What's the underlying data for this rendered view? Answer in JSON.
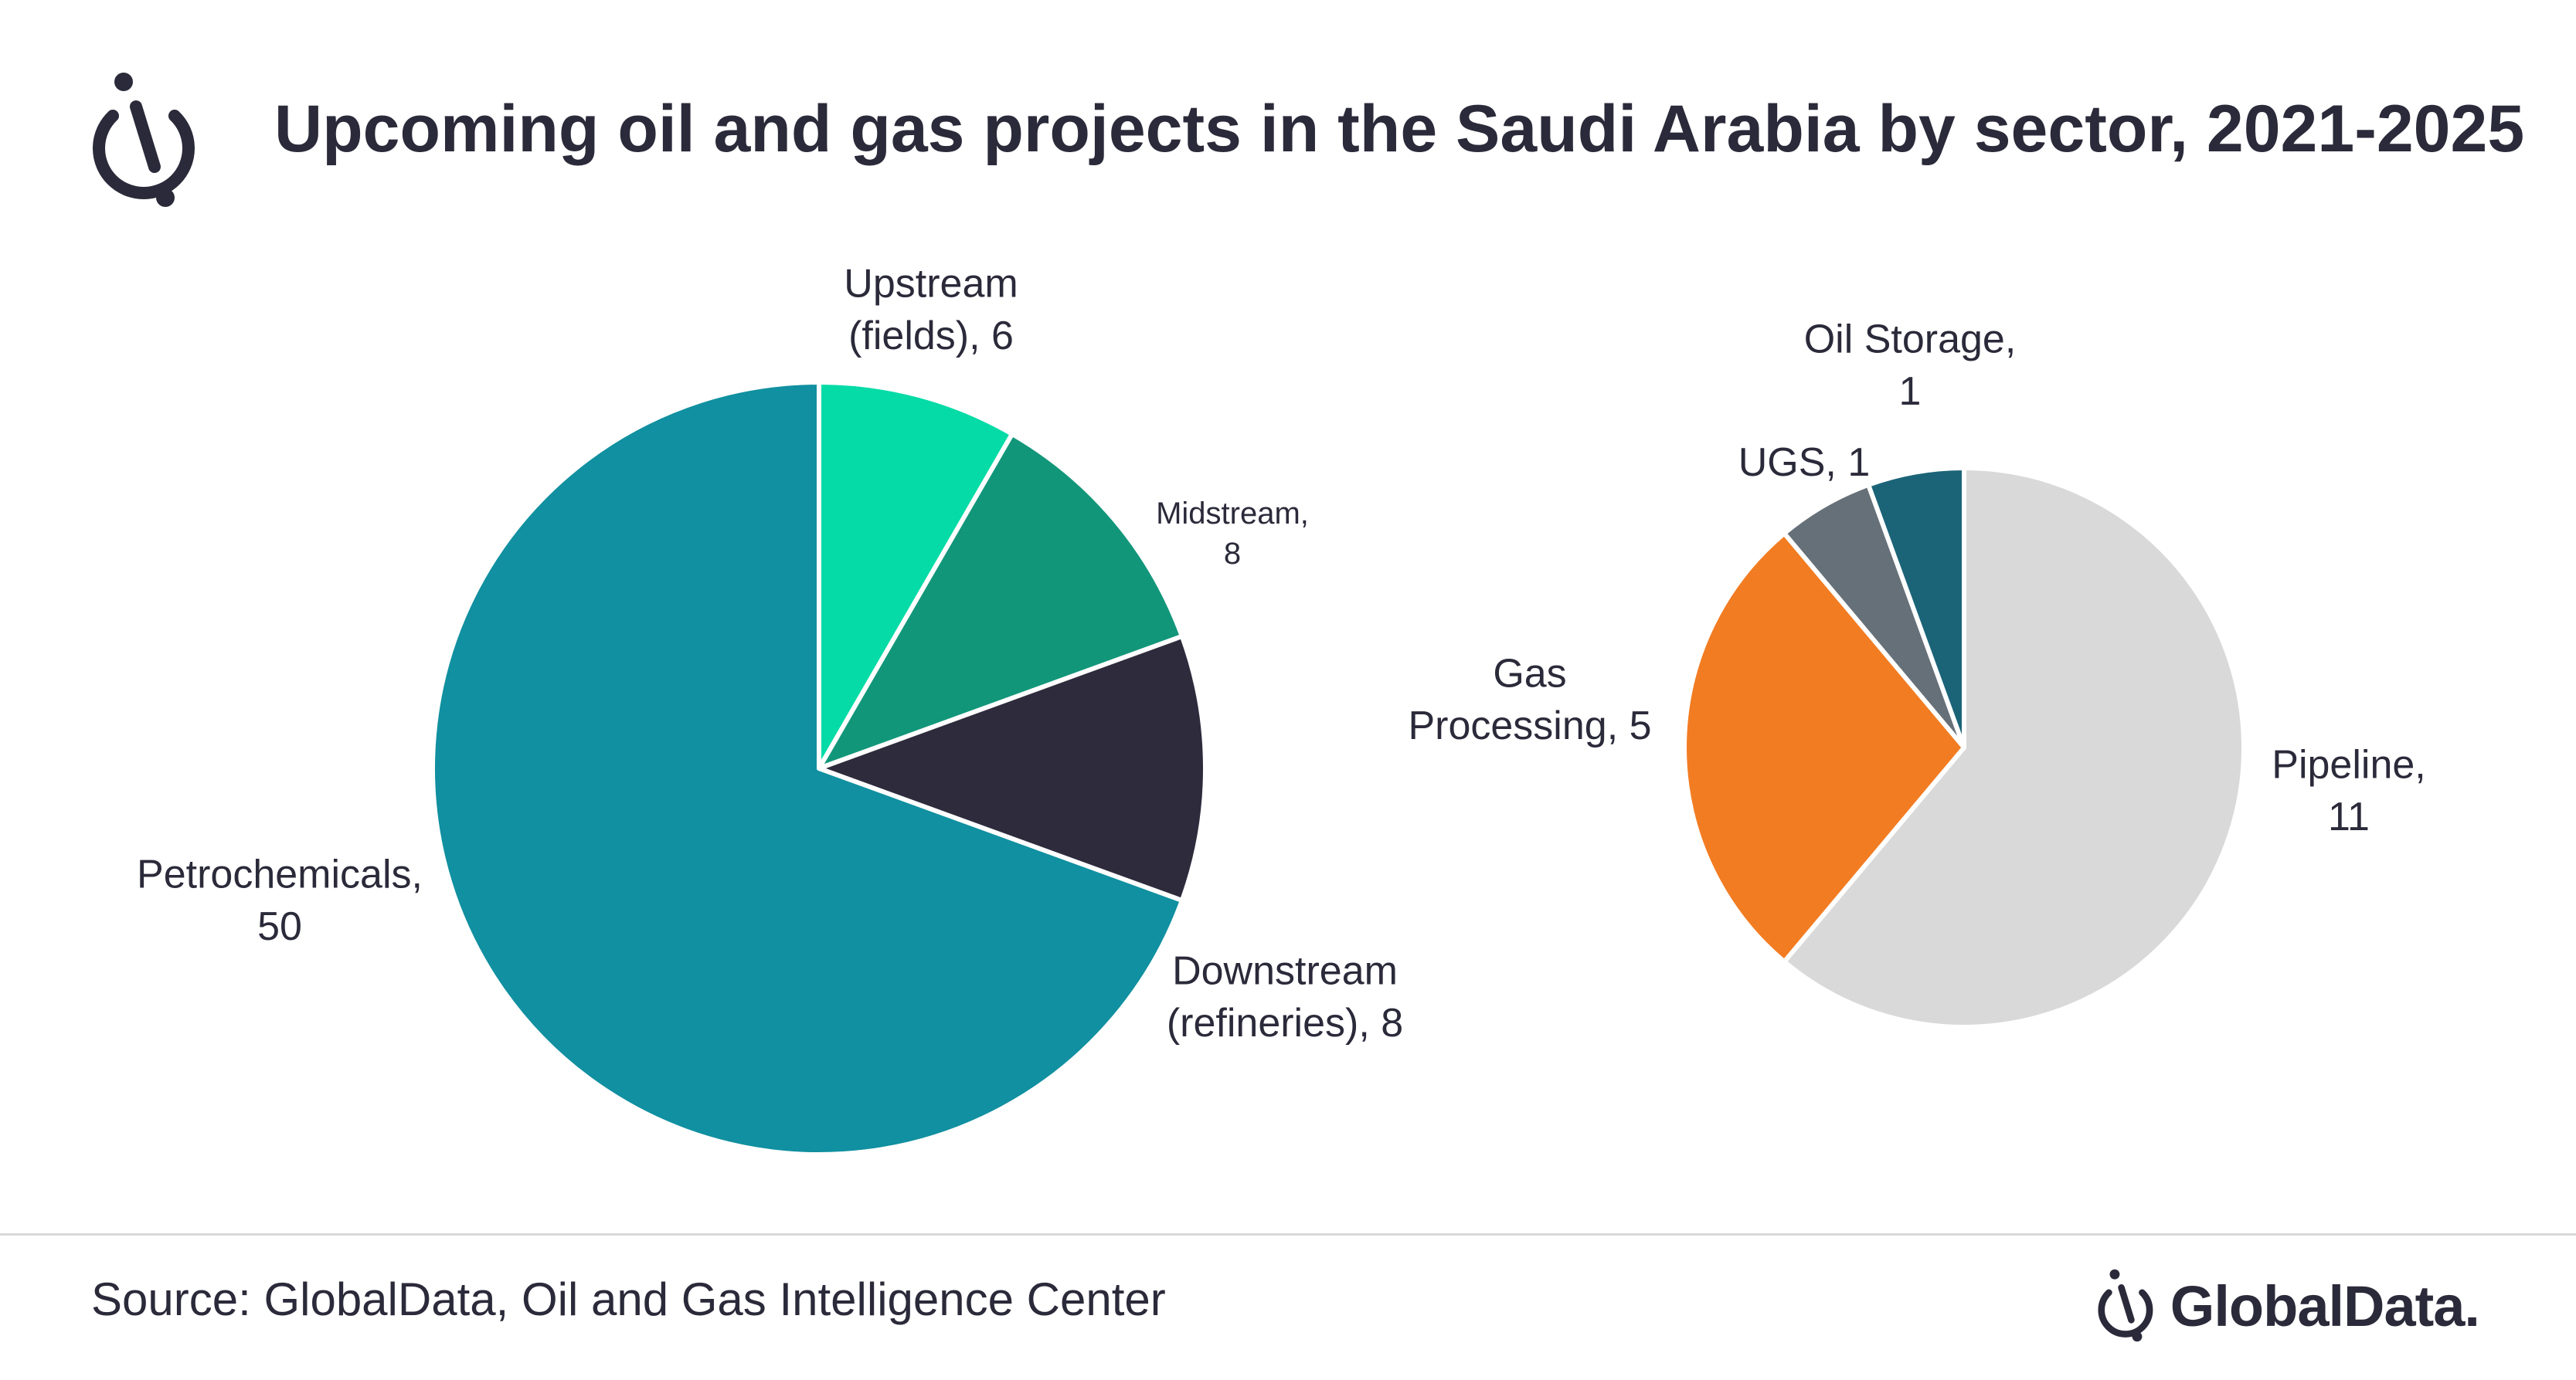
{
  "header": {
    "title": "Upcoming oil and gas projects in the Saudi Arabia by sector, 2021-2025"
  },
  "chart_data": [
    {
      "type": "pie",
      "categories": [
        "Upstream (fields)",
        "Midstream",
        "Downstream (refineries)",
        "Petrochemicals"
      ],
      "values": [
        6,
        8,
        8,
        50
      ],
      "colors": [
        "#05dba6",
        "#12967a",
        "#2e2b3d",
        "#1090a0"
      ],
      "labels": [
        {
          "lines": [
            "Upstream",
            "(fields), 6"
          ],
          "size": "large"
        },
        {
          "lines": [
            "Midstream,",
            "8"
          ],
          "size": "small"
        },
        {
          "lines": [
            "Downstream",
            "(refineries), 8"
          ],
          "size": "large"
        },
        {
          "lines": [
            "Petrochemicals,",
            "50"
          ],
          "size": "large"
        }
      ],
      "start_angle_deg": 0,
      "direction": "clockwise"
    },
    {
      "type": "pie",
      "categories": [
        "Pipeline",
        "Gas Processing",
        "UGS",
        "Oil Storage"
      ],
      "values": [
        11,
        5,
        1,
        1
      ],
      "colors": [
        "#d9d9d9",
        "#f27c22",
        "#667078",
        "#1b6478"
      ],
      "labels": [
        {
          "lines": [
            "Pipeline,",
            "11"
          ],
          "size": "large"
        },
        {
          "lines": [
            "Gas",
            "Processing, 5"
          ],
          "size": "large"
        },
        {
          "lines": [
            "UGS, 1"
          ],
          "size": "large"
        },
        {
          "lines": [
            "Oil Storage,",
            "1"
          ],
          "size": "large"
        }
      ],
      "start_angle_deg": 0,
      "direction": "clockwise"
    }
  ],
  "footer": {
    "source": "Source: GlobalData, Oil and Gas Intelligence Center",
    "brand": "GlobalData."
  },
  "icons": {
    "header_logo": "globaldata-logo-icon",
    "brand_logo": "globaldata-logo-icon"
  }
}
